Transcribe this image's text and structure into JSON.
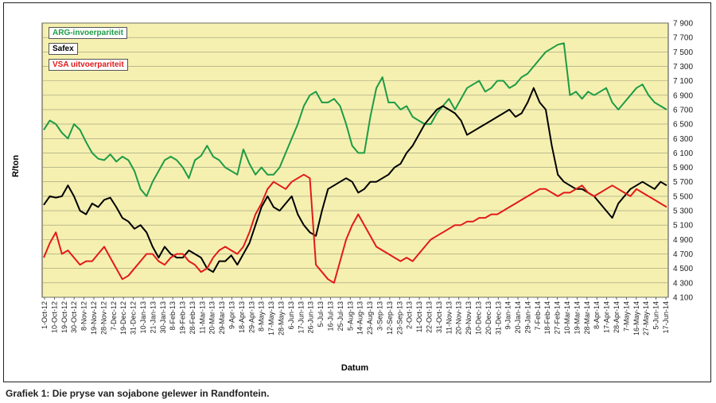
{
  "chart_data": {
    "type": "line",
    "ylabel": "R/ton",
    "xlabel": "Datum",
    "ylim": [
      4100,
      7900
    ],
    "yticks": [
      "7 900",
      "7 700",
      "7 500",
      "7 300",
      "7 100",
      "6 900",
      "6 700",
      "6 500",
      "6 300",
      "6 100",
      "5 900",
      "5 700",
      "5 500",
      "5 300",
      "5 100",
      "4 900",
      "4 700",
      "4 500",
      "4 300",
      "4 100"
    ],
    "grid": "horizontal",
    "y_axis_position": "right",
    "plot_background": "#f5f0b0",
    "legend_position": "top-left",
    "x_labels": [
      "1-Oct-12",
      "10-Oct-12",
      "19-Oct-12",
      "30-Oct-12",
      "8-Nov-12",
      "19-Nov-12",
      "28-Nov-12",
      "7-Dec-12",
      "19-Dec-12",
      "31-Dec-12",
      "10-Jan-13",
      "21-Jan-13",
      "30-Jan-13",
      "8-Feb-13",
      "19-Feb-13",
      "28-Feb-13",
      "11-Mar-13",
      "20-Mar-13",
      "29-Mar-13",
      "9-Apr-13",
      "18-Apr-13",
      "29-Apr-13",
      "8-May-13",
      "17-May-13",
      "28-May-13",
      "6-Jun-13",
      "17-Jun-13",
      "26-Jun-13",
      "5-Jul-13",
      "16-Jul-13",
      "25-Jul-13",
      "5-Aug-13",
      "14-Aug-13",
      "23-Aug-13",
      "3-Sep-13",
      "12-Sep-13",
      "23-Sep-13",
      "2-Oct-13",
      "11-Oct-13",
      "22-Oct-13",
      "31-Oct-13",
      "11-Nov-13",
      "20-Nov-13",
      "29-Nov-13",
      "10-Dec-13",
      "20-Dec-13",
      "31-Dec-13",
      "9-Jan-14",
      "20-Jan-14",
      "29-Jan-14",
      "7-Feb-14",
      "18-Feb-14",
      "27-Feb-14",
      "10-Mar-14",
      "19-Mar-14",
      "28-Mar-14",
      "8-Apr-14",
      "17-Apr-14",
      "28-Apr-14",
      "7-May-14",
      "16-May-14",
      "27-May-14",
      "5-Jun-14",
      "17-Jun-14"
    ],
    "series": [
      {
        "name": "ARG-invoerpariteit",
        "color": "#1e9b46",
        "values": [
          6420,
          6550,
          6500,
          6380,
          6300,
          6500,
          6420,
          6250,
          6100,
          6020,
          6000,
          6080,
          5980,
          6050,
          6000,
          5850,
          5600,
          5500,
          5700,
          5850,
          6000,
          6050,
          6000,
          5900,
          5750,
          6000,
          6060,
          6200,
          6050,
          6000,
          5900,
          5850,
          5800,
          6150,
          5950,
          5800,
          5900,
          5800,
          5800,
          5900,
          6100,
          6300,
          6500,
          6750,
          6900,
          6950,
          6800,
          6800,
          6850,
          6750,
          6500,
          6200,
          6100,
          6100,
          6600,
          7000,
          7150,
          6800,
          6800,
          6700,
          6750,
          6600,
          6550,
          6500,
          6500,
          6650,
          6750,
          6850,
          6700,
          6850,
          7000,
          7050,
          7100,
          6950,
          7000,
          7100,
          7100,
          7000,
          7050,
          7150,
          7200,
          7300,
          7400,
          7500,
          7550,
          7600,
          7620,
          6900,
          6950,
          6850,
          6950,
          6900,
          6950,
          7000,
          6800,
          6700,
          6800,
          6900,
          7000,
          7050,
          6900,
          6800,
          6750,
          6700
        ]
      },
      {
        "name": "Safex",
        "color": "#000000",
        "values": [
          5380,
          5500,
          5480,
          5500,
          5650,
          5500,
          5300,
          5250,
          5400,
          5350,
          5450,
          5480,
          5350,
          5200,
          5150,
          5050,
          5100,
          5000,
          4800,
          4650,
          4800,
          4700,
          4650,
          4650,
          4750,
          4700,
          4650,
          4500,
          4450,
          4600,
          4600,
          4680,
          4550,
          4700,
          4850,
          5100,
          5350,
          5500,
          5350,
          5300,
          5400,
          5500,
          5250,
          5100,
          5000,
          4950,
          5300,
          5600,
          5650,
          5700,
          5750,
          5700,
          5550,
          5600,
          5700,
          5700,
          5750,
          5800,
          5900,
          5950,
          6100,
          6200,
          6350,
          6500,
          6600,
          6700,
          6750,
          6700,
          6650,
          6550,
          6350,
          6400,
          6450,
          6500,
          6550,
          6600,
          6650,
          6700,
          6600,
          6650,
          6800,
          7000,
          6800,
          6700,
          6200,
          5800,
          5700,
          5650,
          5600,
          5600,
          5550,
          5500,
          5400,
          5300,
          5200,
          5400,
          5500,
          5600,
          5650,
          5700,
          5650,
          5600,
          5700,
          5650
        ]
      },
      {
        "name": "VSA uitvoerpariteit",
        "color": "#e21a1a",
        "values": [
          4650,
          4850,
          5000,
          4700,
          4750,
          4650,
          4550,
          4600,
          4600,
          4700,
          4800,
          4650,
          4500,
          4350,
          4400,
          4500,
          4600,
          4700,
          4700,
          4600,
          4550,
          4650,
          4700,
          4700,
          4600,
          4550,
          4450,
          4500,
          4650,
          4750,
          4800,
          4750,
          4700,
          4800,
          5000,
          5250,
          5400,
          5600,
          5700,
          5650,
          5600,
          5700,
          5750,
          5800,
          5750,
          4550,
          4450,
          4350,
          4300,
          4600,
          4900,
          5100,
          5250,
          5100,
          4950,
          4800,
          4750,
          4700,
          4650,
          4600,
          4650,
          4600,
          4700,
          4800,
          4900,
          4950,
          5000,
          5050,
          5100,
          5100,
          5150,
          5150,
          5200,
          5200,
          5250,
          5250,
          5300,
          5350,
          5400,
          5450,
          5500,
          5550,
          5600,
          5600,
          5550,
          5500,
          5550,
          5550,
          5600,
          5650,
          5550,
          5500,
          5550,
          5600,
          5650,
          5600,
          5550,
          5500,
          5600,
          5550,
          5500,
          5450,
          5400,
          5350
        ]
      }
    ]
  },
  "caption": "Grafiek 1: Die pryse van sojabone gelewer in Randfontein."
}
